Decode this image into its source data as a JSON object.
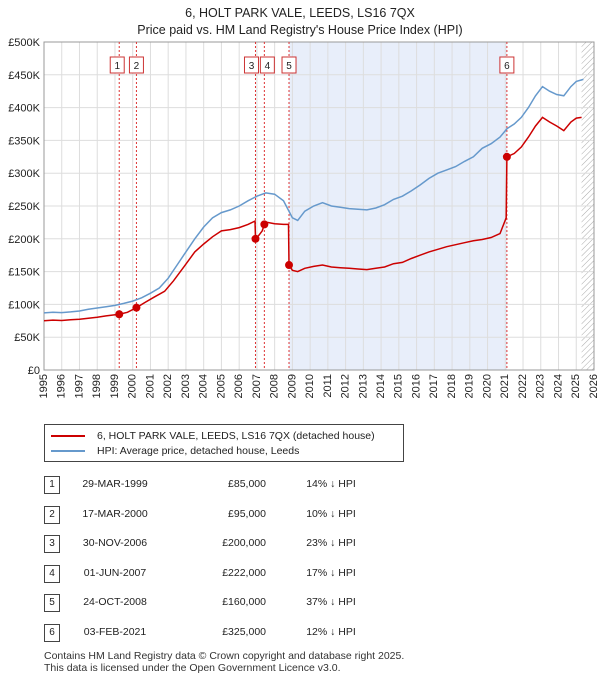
{
  "titles": {
    "line1": "6, HOLT PARK VALE, LEEDS, LS16 7QX",
    "line2": "Price paid vs. HM Land Registry's House Price Index (HPI)"
  },
  "chart_data": {
    "type": "line",
    "title": "Price paid vs. HM Land Registry's House Price Index (HPI)",
    "x_range": [
      1995,
      2026
    ],
    "y_range": [
      0,
      500000
    ],
    "y_ticks": [
      0,
      50000,
      100000,
      150000,
      200000,
      250000,
      300000,
      350000,
      400000,
      450000,
      500000
    ],
    "y_tick_labels": [
      "£0",
      "£50K",
      "£100K",
      "£150K",
      "£200K",
      "£250K",
      "£300K",
      "£350K",
      "£400K",
      "£450K",
      "£500K"
    ],
    "x_ticks": [
      1995,
      1996,
      1997,
      1998,
      1999,
      2000,
      2001,
      2002,
      2003,
      2004,
      2005,
      2006,
      2007,
      2008,
      2009,
      2010,
      2011,
      2012,
      2013,
      2014,
      2015,
      2016,
      2017,
      2018,
      2019,
      2020,
      2021,
      2022,
      2023,
      2024,
      2025,
      2026
    ],
    "shaded_period": [
      2008.82,
      2021.09
    ],
    "hatched_after": 2025.3,
    "series": [
      {
        "name": "6, HOLT PARK VALE, LEEDS, LS16 7QX (detached house)",
        "color": "#cc0000",
        "points": [
          [
            1995.0,
            75000
          ],
          [
            1995.5,
            76000
          ],
          [
            1996.0,
            75500
          ],
          [
            1996.5,
            76500
          ],
          [
            1997.0,
            77500
          ],
          [
            1997.5,
            79000
          ],
          [
            1998.0,
            80500
          ],
          [
            1998.5,
            82500
          ],
          [
            1999.24,
            85000
          ],
          [
            1999.7,
            88000
          ],
          [
            2000.21,
            95000
          ],
          [
            2000.7,
            103000
          ],
          [
            2001.2,
            111000
          ],
          [
            2001.8,
            120000
          ],
          [
            2002.3,
            136000
          ],
          [
            2002.9,
            158000
          ],
          [
            2003.5,
            180000
          ],
          [
            2004.0,
            192000
          ],
          [
            2004.5,
            203000
          ],
          [
            2005.0,
            212000
          ],
          [
            2005.5,
            214000
          ],
          [
            2006.0,
            217000
          ],
          [
            2006.5,
            222000
          ],
          [
            2006.89,
            227000
          ],
          [
            2006.92,
            200000
          ],
          [
            2007.1,
            205000
          ],
          [
            2007.3,
            212000
          ],
          [
            2007.42,
            222000
          ],
          [
            2007.6,
            225000
          ],
          [
            2008.0,
            223000
          ],
          [
            2008.5,
            222000
          ],
          [
            2008.78,
            222000
          ],
          [
            2008.81,
            160000
          ],
          [
            2009.0,
            152000
          ],
          [
            2009.3,
            150000
          ],
          [
            2009.7,
            155000
          ],
          [
            2010.2,
            158000
          ],
          [
            2010.7,
            160000
          ],
          [
            2011.2,
            157000
          ],
          [
            2011.7,
            156000
          ],
          [
            2012.2,
            155000
          ],
          [
            2012.7,
            154000
          ],
          [
            2013.2,
            153000
          ],
          [
            2013.7,
            155000
          ],
          [
            2014.2,
            157000
          ],
          [
            2014.7,
            162000
          ],
          [
            2015.2,
            164000
          ],
          [
            2015.7,
            170000
          ],
          [
            2016.2,
            175000
          ],
          [
            2016.7,
            180000
          ],
          [
            2017.2,
            184000
          ],
          [
            2017.7,
            188000
          ],
          [
            2018.2,
            191000
          ],
          [
            2018.7,
            194000
          ],
          [
            2019.2,
            197000
          ],
          [
            2019.7,
            199000
          ],
          [
            2020.2,
            202000
          ],
          [
            2020.7,
            208000
          ],
          [
            2021.05,
            232000
          ],
          [
            2021.09,
            325000
          ],
          [
            2021.5,
            330000
          ],
          [
            2021.9,
            340000
          ],
          [
            2022.3,
            355000
          ],
          [
            2022.7,
            372000
          ],
          [
            2023.1,
            385000
          ],
          [
            2023.5,
            378000
          ],
          [
            2023.9,
            372000
          ],
          [
            2024.3,
            365000
          ],
          [
            2024.7,
            378000
          ],
          [
            2025.0,
            384000
          ],
          [
            2025.3,
            385000
          ]
        ]
      },
      {
        "name": "HPI: Average price, detached house, Leeds",
        "color": "#6699cc",
        "points": [
          [
            1995.0,
            87000
          ],
          [
            1995.5,
            88000
          ],
          [
            1996.0,
            87500
          ],
          [
            1996.5,
            88500
          ],
          [
            1997.0,
            90000
          ],
          [
            1997.5,
            92500
          ],
          [
            1998.0,
            94500
          ],
          [
            1998.5,
            96500
          ],
          [
            1999.0,
            98500
          ],
          [
            1999.5,
            101500
          ],
          [
            2000.0,
            105000
          ],
          [
            2000.5,
            110000
          ],
          [
            2001.0,
            117000
          ],
          [
            2001.5,
            125000
          ],
          [
            2002.0,
            140000
          ],
          [
            2002.5,
            160000
          ],
          [
            2003.0,
            180000
          ],
          [
            2003.5,
            200000
          ],
          [
            2004.0,
            218000
          ],
          [
            2004.5,
            232000
          ],
          [
            2005.0,
            240000
          ],
          [
            2005.5,
            244000
          ],
          [
            2006.0,
            250000
          ],
          [
            2006.5,
            258000
          ],
          [
            2007.0,
            265000
          ],
          [
            2007.5,
            270000
          ],
          [
            2008.0,
            268000
          ],
          [
            2008.5,
            258000
          ],
          [
            2009.0,
            232000
          ],
          [
            2009.3,
            228000
          ],
          [
            2009.7,
            242000
          ],
          [
            2010.2,
            250000
          ],
          [
            2010.7,
            255000
          ],
          [
            2011.2,
            250000
          ],
          [
            2011.7,
            248000
          ],
          [
            2012.2,
            246000
          ],
          [
            2012.7,
            245000
          ],
          [
            2013.2,
            244000
          ],
          [
            2013.7,
            247000
          ],
          [
            2014.2,
            252000
          ],
          [
            2014.7,
            260000
          ],
          [
            2015.2,
            265000
          ],
          [
            2015.7,
            273000
          ],
          [
            2016.2,
            282000
          ],
          [
            2016.7,
            292000
          ],
          [
            2017.2,
            300000
          ],
          [
            2017.7,
            305000
          ],
          [
            2018.2,
            310000
          ],
          [
            2018.7,
            318000
          ],
          [
            2019.2,
            325000
          ],
          [
            2019.7,
            338000
          ],
          [
            2020.2,
            345000
          ],
          [
            2020.7,
            355000
          ],
          [
            2021.1,
            368000
          ],
          [
            2021.5,
            375000
          ],
          [
            2021.9,
            385000
          ],
          [
            2022.3,
            400000
          ],
          [
            2022.7,
            418000
          ],
          [
            2023.1,
            432000
          ],
          [
            2023.5,
            425000
          ],
          [
            2023.9,
            420000
          ],
          [
            2024.3,
            418000
          ],
          [
            2024.7,
            432000
          ],
          [
            2025.0,
            440000
          ],
          [
            2025.4,
            443000
          ]
        ]
      }
    ],
    "sales": [
      {
        "label": "1",
        "x": 1999.24,
        "price": 85000
      },
      {
        "label": "2",
        "x": 2000.21,
        "price": 95000
      },
      {
        "label": "3",
        "x": 2006.92,
        "price": 200000
      },
      {
        "label": "4",
        "x": 2007.42,
        "price": 222000
      },
      {
        "label": "5",
        "x": 2008.81,
        "price": 160000
      },
      {
        "label": "6",
        "x": 2021.09,
        "price": 325000
      }
    ]
  },
  "legend": {
    "red": "6, HOLT PARK VALE, LEEDS, LS16 7QX (detached house)",
    "blue": "HPI: Average price, detached house, Leeds"
  },
  "table": [
    {
      "num": "1",
      "date": "29-MAR-1999",
      "price": "£85,000",
      "hpi": "14% ↓ HPI"
    },
    {
      "num": "2",
      "date": "17-MAR-2000",
      "price": "£95,000",
      "hpi": "10% ↓ HPI"
    },
    {
      "num": "3",
      "date": "30-NOV-2006",
      "price": "£200,000",
      "hpi": "23% ↓ HPI"
    },
    {
      "num": "4",
      "date": "01-JUN-2007",
      "price": "£222,000",
      "hpi": "17% ↓ HPI"
    },
    {
      "num": "5",
      "date": "24-OCT-2008",
      "price": "£160,000",
      "hpi": "37% ↓ HPI"
    },
    {
      "num": "6",
      "date": "03-FEB-2021",
      "price": "£325,000",
      "hpi": "12% ↓ HPI"
    }
  ],
  "footer": {
    "line1": "Contains HM Land Registry data © Crown copyright and database right 2025.",
    "line2": "This data is licensed under the Open Government Licence v3.0."
  }
}
